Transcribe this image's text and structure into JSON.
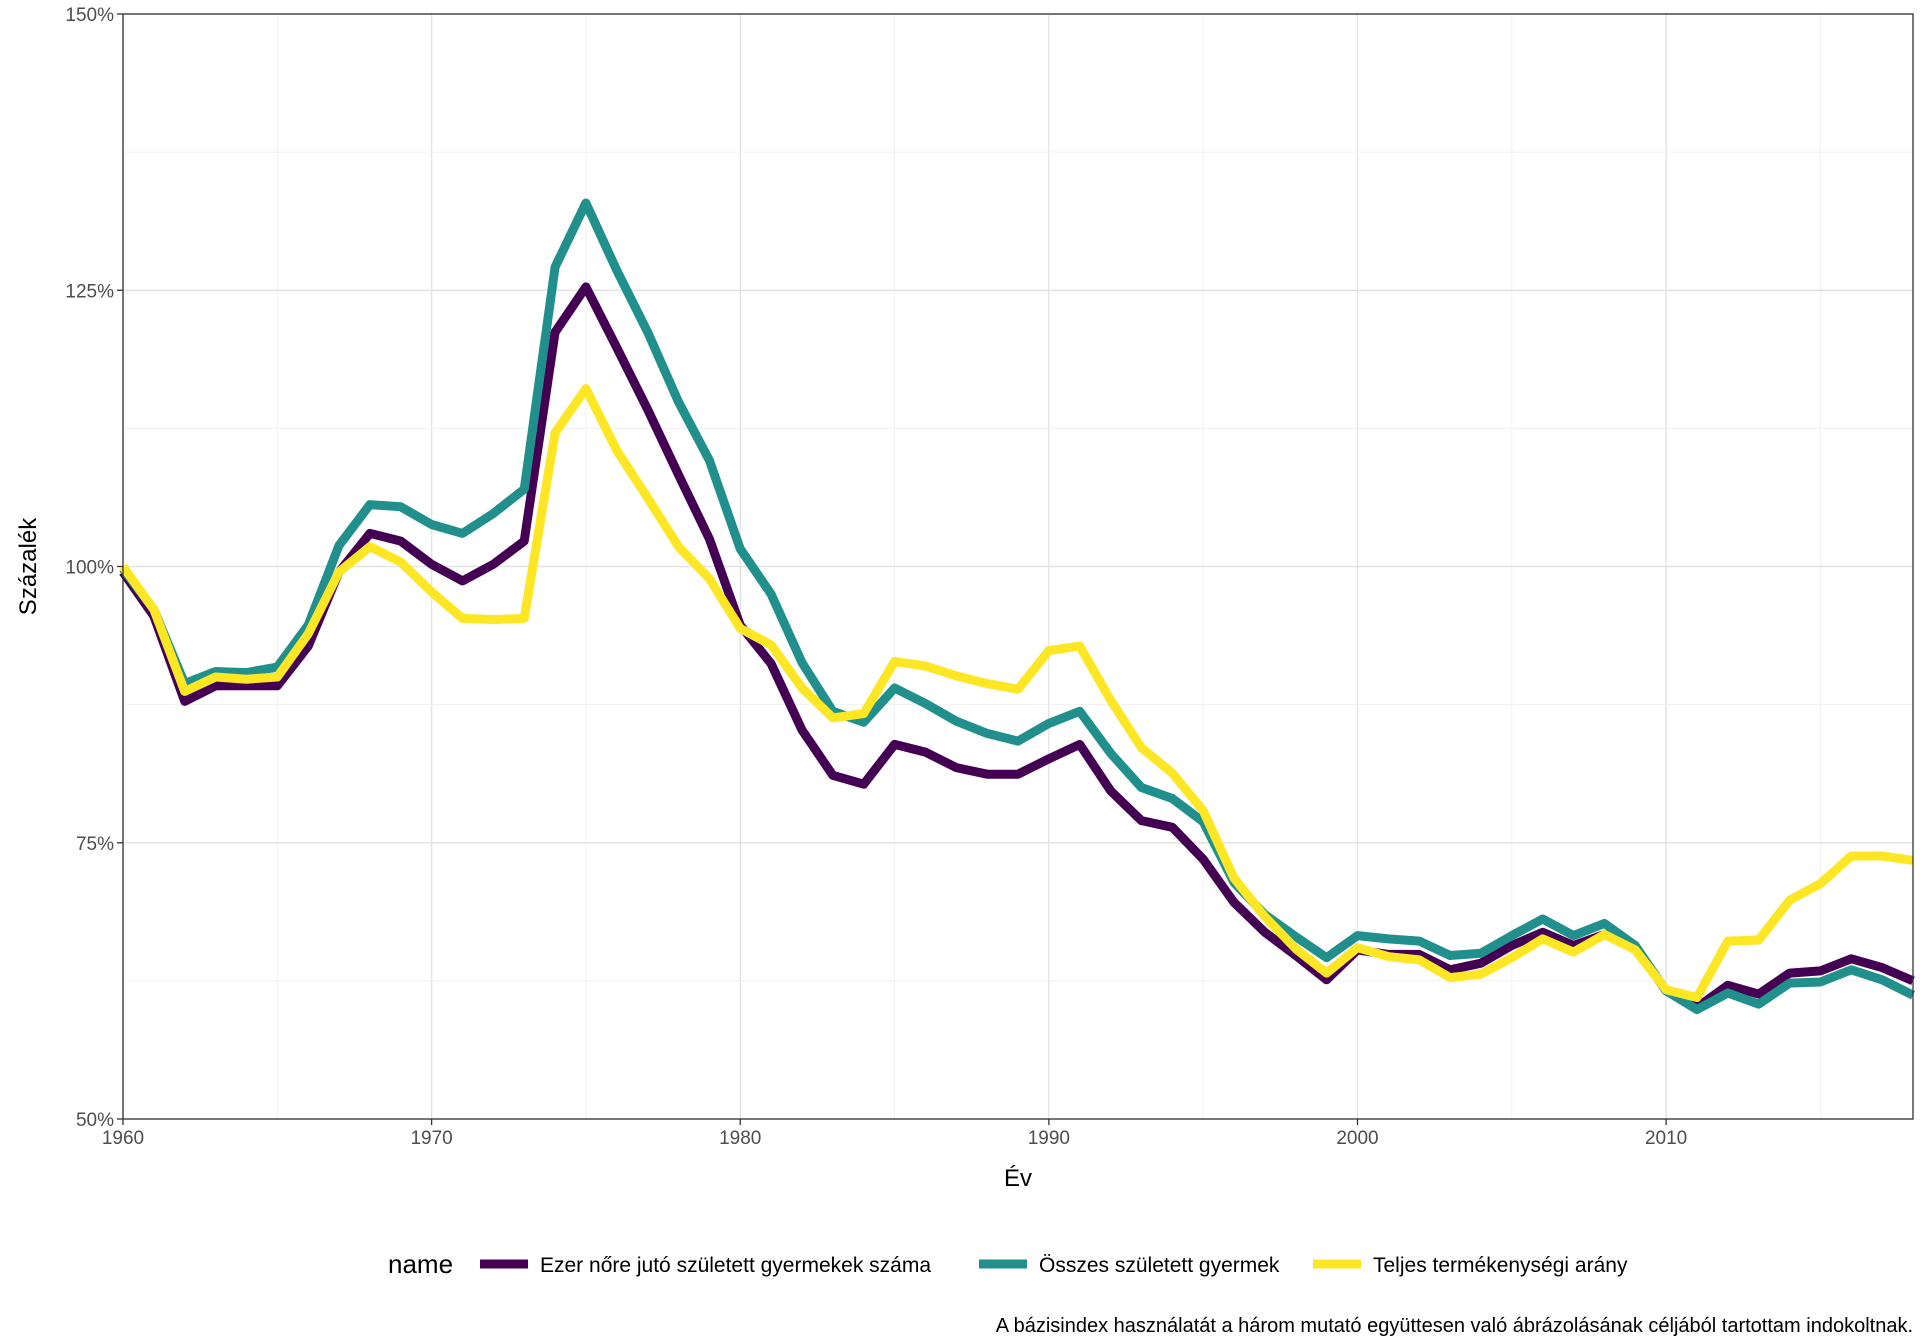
{
  "chart_data": {
    "type": "line",
    "xlabel": "Év",
    "ylabel": "Százalék",
    "xlim": [
      1960,
      2018
    ],
    "ylim": [
      50,
      150
    ],
    "x_ticks": [
      1960,
      1970,
      1980,
      1990,
      2000,
      2010
    ],
    "y_ticks": [
      50,
      75,
      100,
      125,
      150
    ],
    "y_tick_labels": [
      "50%",
      "75%",
      "100%",
      "125%",
      "150%"
    ],
    "grid": true,
    "legend_title": "name",
    "legend_position": "bottom",
    "caption": "A bázisindex használatát a három mutató együttesen való ábrázolásának céljából tartottam indokoltnak.",
    "x": [
      1960,
      1961,
      1962,
      1963,
      1964,
      1965,
      1966,
      1967,
      1968,
      1969,
      1970,
      1971,
      1972,
      1973,
      1974,
      1975,
      1976,
      1977,
      1978,
      1979,
      1980,
      1981,
      1982,
      1983,
      1984,
      1985,
      1986,
      1987,
      1988,
      1989,
      1990,
      1991,
      1992,
      1993,
      1994,
      1995,
      1996,
      1997,
      1998,
      1999,
      2000,
      2001,
      2002,
      2003,
      2004,
      2005,
      2006,
      2007,
      2008,
      2009,
      2010,
      2011,
      2012,
      2013,
      2014,
      2015,
      2016,
      2017,
      2018
    ],
    "series": [
      {
        "name": "Ezer nőre jutó született gyermekek száma",
        "color": "#440154",
        "values": [
          99.5,
          95.5,
          87.8,
          89.2,
          89.2,
          89.2,
          92.8,
          99.5,
          103,
          102.3,
          100.2,
          98.7,
          100.2,
          102.3,
          121.2,
          125.3,
          119.8,
          114.2,
          108.3,
          102.5,
          94.7,
          91.2,
          85.2,
          81.1,
          80.3,
          83.9,
          83.2,
          81.8,
          81.2,
          81.2,
          82.6,
          83.9,
          79.7,
          77,
          76.4,
          73.5,
          69.6,
          66.9,
          64.8,
          62.6,
          65.3,
          64.9,
          64.9,
          63.5,
          64.1,
          65.7,
          66.9,
          65.7,
          66.7,
          65.6,
          61.6,
          60.1,
          62.1,
          61.3,
          63.2,
          63.4,
          64.5,
          63.7,
          62.5
        ]
      },
      {
        "name": "Összes született gyermek",
        "color": "#21908C",
        "values": [
          99.8,
          96.1,
          89.4,
          90.5,
          90.4,
          90.9,
          94.7,
          101.9,
          105.6,
          105.4,
          103.8,
          103,
          104.8,
          107,
          127.1,
          132.9,
          126.8,
          121.2,
          114.9,
          109.6,
          101.6,
          97.5,
          91.3,
          86.9,
          85.9,
          89,
          87.6,
          86,
          84.9,
          84.2,
          85.8,
          86.9,
          83.1,
          80,
          79,
          76.9,
          71.4,
          68.5,
          66.5,
          64.6,
          66.6,
          66.3,
          66.1,
          64.8,
          65,
          66.6,
          68.1,
          66.6,
          67.7,
          65.7,
          61.6,
          59.9,
          61.4,
          60.4,
          62.3,
          62.4,
          63.5,
          62.6,
          61.2
        ]
      },
      {
        "name": "Teljes termékenységi arány",
        "color": "#FDE725",
        "values": [
          100,
          96.1,
          88.7,
          90,
          89.8,
          90,
          93.9,
          99.5,
          101.8,
          100.4,
          97.7,
          95.3,
          95.2,
          95.3,
          112.1,
          116.1,
          110.5,
          106.2,
          101.8,
          98.9,
          94.4,
          92.9,
          89,
          86.3,
          86.7,
          91.4,
          91,
          90.1,
          89.4,
          88.9,
          92.4,
          92.8,
          87.9,
          83.6,
          81.3,
          77.9,
          71.8,
          68.3,
          65.4,
          63.2,
          65.5,
          64.7,
          64.4,
          62.8,
          63.1,
          64.6,
          66.3,
          65.1,
          66.7,
          65.3,
          61.7,
          61,
          66.1,
          66.2,
          69.8,
          71.3,
          73.8,
          73.8,
          73.4
        ]
      }
    ]
  }
}
